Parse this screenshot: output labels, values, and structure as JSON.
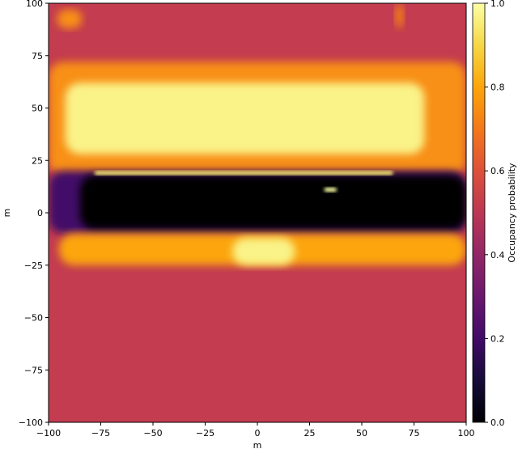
{
  "chart_data": {
    "type": "heatmap",
    "title": "",
    "xlabel": "m",
    "ylabel": "m",
    "xlim": [
      -100,
      100
    ],
    "ylim": [
      -100,
      100
    ],
    "xticks": [
      "-100",
      "-75",
      "-50",
      "-25",
      "0",
      "25",
      "50",
      "75",
      "100"
    ],
    "yticks": [
      "100",
      "75",
      "50",
      "25",
      "0",
      "-25",
      "-50",
      "-75",
      "-100"
    ],
    "colorbar": {
      "label": "Occupancy probability",
      "range": [
        0.0,
        1.0
      ],
      "ticks": [
        "1.0",
        "0.8",
        "0.6",
        "0.4",
        "0.2",
        "0.0"
      ],
      "colormap": "inferno",
      "stops": [
        "#000004",
        "#160b39",
        "#420a68",
        "#6a176e",
        "#932667",
        "#bc3754",
        "#dd513a",
        "#f37819",
        "#fca50a",
        "#f6d746",
        "#fcffa4"
      ]
    },
    "background_value": 0.52,
    "regions": [
      {
        "name": "upper occupied band halo",
        "x": [
          -100,
          100
        ],
        "y": [
          18,
          72
        ],
        "value": 0.75
      },
      {
        "name": "upper occupied band core",
        "x": [
          -92,
          80
        ],
        "y": [
          28,
          62
        ],
        "value": 0.97
      },
      {
        "name": "top-left blob",
        "x": [
          -96,
          -84
        ],
        "y": [
          88,
          97
        ],
        "value": 0.75
      },
      {
        "name": "top-right streak",
        "x": [
          66,
          70
        ],
        "y": [
          88,
          100
        ],
        "value": 0.72
      },
      {
        "name": "free corridor fringe",
        "x": [
          -100,
          100
        ],
        "y": [
          -10,
          20
        ],
        "value": 0.2
      },
      {
        "name": "free corridor",
        "x": [
          -85,
          100
        ],
        "y": [
          -8,
          18
        ],
        "value": 0.0
      },
      {
        "name": "corridor edge line",
        "x": [
          -78,
          65
        ],
        "y": [
          18,
          20
        ],
        "value": 0.95
      },
      {
        "name": "small spot",
        "x": [
          32,
          38
        ],
        "y": [
          10,
          12
        ],
        "value": 1.0
      },
      {
        "name": "lower occupied band",
        "x": [
          -95,
          100
        ],
        "y": [
          -25,
          -10
        ],
        "value": 0.8
      },
      {
        "name": "lower occupied core",
        "x": [
          -12,
          18
        ],
        "y": [
          -25,
          -12
        ],
        "value": 0.97
      }
    ]
  }
}
